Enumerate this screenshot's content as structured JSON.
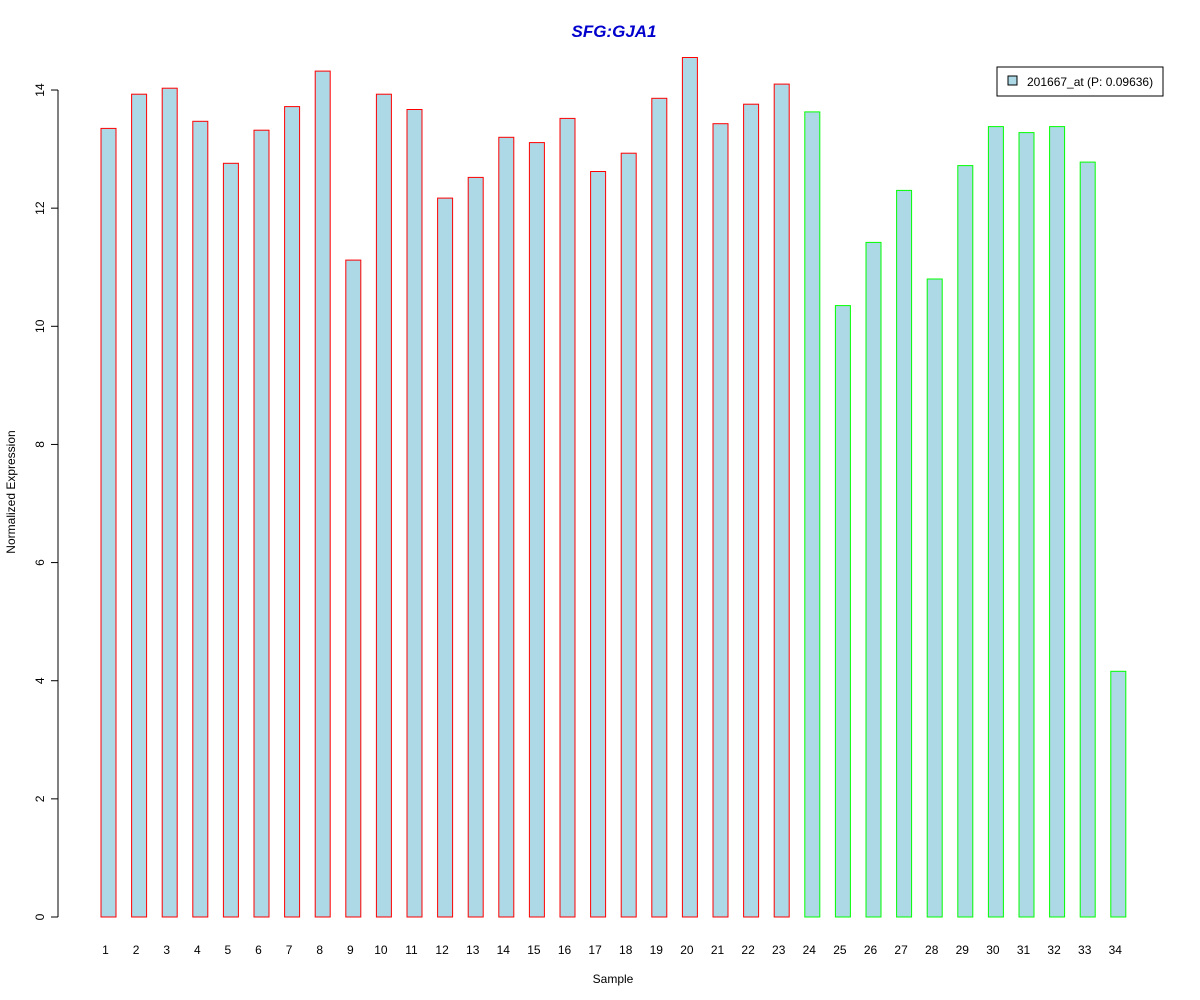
{
  "chart_data": {
    "type": "bar",
    "title": "SFG:GJA1",
    "xlabel": "Sample",
    "ylabel": "Normalized Expression",
    "ylim": [
      0,
      14.5
    ],
    "yticks": [
      0,
      2,
      4,
      6,
      8,
      10,
      12,
      14
    ],
    "grid": false,
    "legend_position": "top-right",
    "categories": [
      "1",
      "2",
      "3",
      "4",
      "5",
      "6",
      "7",
      "8",
      "9",
      "10",
      "11",
      "12",
      "13",
      "14",
      "15",
      "16",
      "17",
      "18",
      "19",
      "20",
      "21",
      "22",
      "23",
      "24",
      "25",
      "26",
      "27",
      "28",
      "29",
      "30",
      "31",
      "32",
      "33",
      "34"
    ],
    "series": [
      {
        "name": "201667_at (P: 0.09636)",
        "values": [
          13.35,
          13.93,
          14.03,
          13.47,
          12.76,
          13.32,
          13.72,
          14.32,
          11.12,
          13.93,
          13.67,
          12.17,
          12.52,
          13.2,
          13.11,
          13.52,
          12.62,
          12.93,
          13.86,
          14.55,
          13.43,
          13.76,
          14.1,
          13.63,
          10.35,
          11.42,
          12.3,
          10.8,
          12.72,
          13.38,
          13.28,
          13.38,
          12.78,
          4.16
        ],
        "groups": [
          "red",
          "red",
          "red",
          "red",
          "red",
          "red",
          "red",
          "red",
          "red",
          "red",
          "red",
          "red",
          "red",
          "red",
          "red",
          "red",
          "red",
          "red",
          "red",
          "red",
          "red",
          "red",
          "red",
          "green",
          "green",
          "green",
          "green",
          "green",
          "green",
          "green",
          "green",
          "green",
          "green",
          "green"
        ]
      }
    ],
    "colors": {
      "bar_fill": "#add8e6",
      "group_red_border": "#ff0000",
      "group_green_border": "#00ff00",
      "title": "#0000cd",
      "axis": "#000000"
    }
  }
}
